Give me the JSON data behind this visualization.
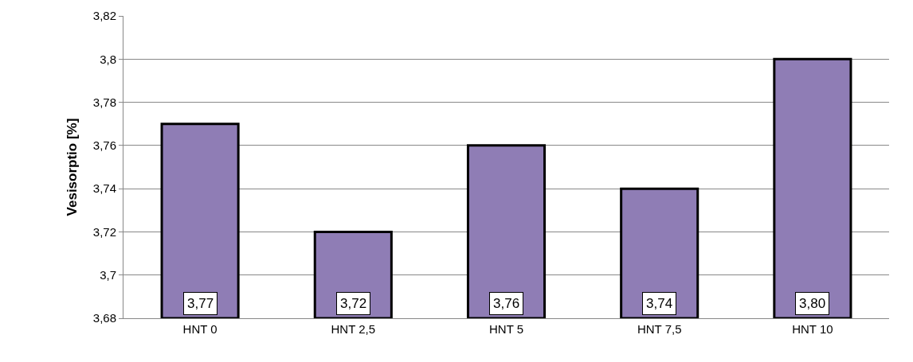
{
  "chart_data": {
    "type": "bar",
    "ylabel": "Vesisorptio [%]",
    "categories": [
      "HNT 0",
      "HNT 2,5",
      "HNT 5",
      "HNT 7,5",
      "HNT 10"
    ],
    "values": [
      3.77,
      3.72,
      3.76,
      3.74,
      3.8
    ],
    "value_labels": [
      "3,77",
      "3,72",
      "3,76",
      "3,74",
      "3,80"
    ],
    "color": "#8f7db5",
    "ylim": [
      3.68,
      3.82
    ],
    "yticks": [
      {
        "value": 3.68,
        "label": "3,68"
      },
      {
        "value": 3.7,
        "label": "3,7"
      },
      {
        "value": 3.72,
        "label": "3,72"
      },
      {
        "value": 3.74,
        "label": "3,74"
      },
      {
        "value": 3.76,
        "label": "3,76"
      },
      {
        "value": 3.78,
        "label": "3,78"
      },
      {
        "value": 3.8,
        "label": "3,8"
      },
      {
        "value": 3.82,
        "label": "3,82"
      }
    ],
    "grid": "y"
  }
}
